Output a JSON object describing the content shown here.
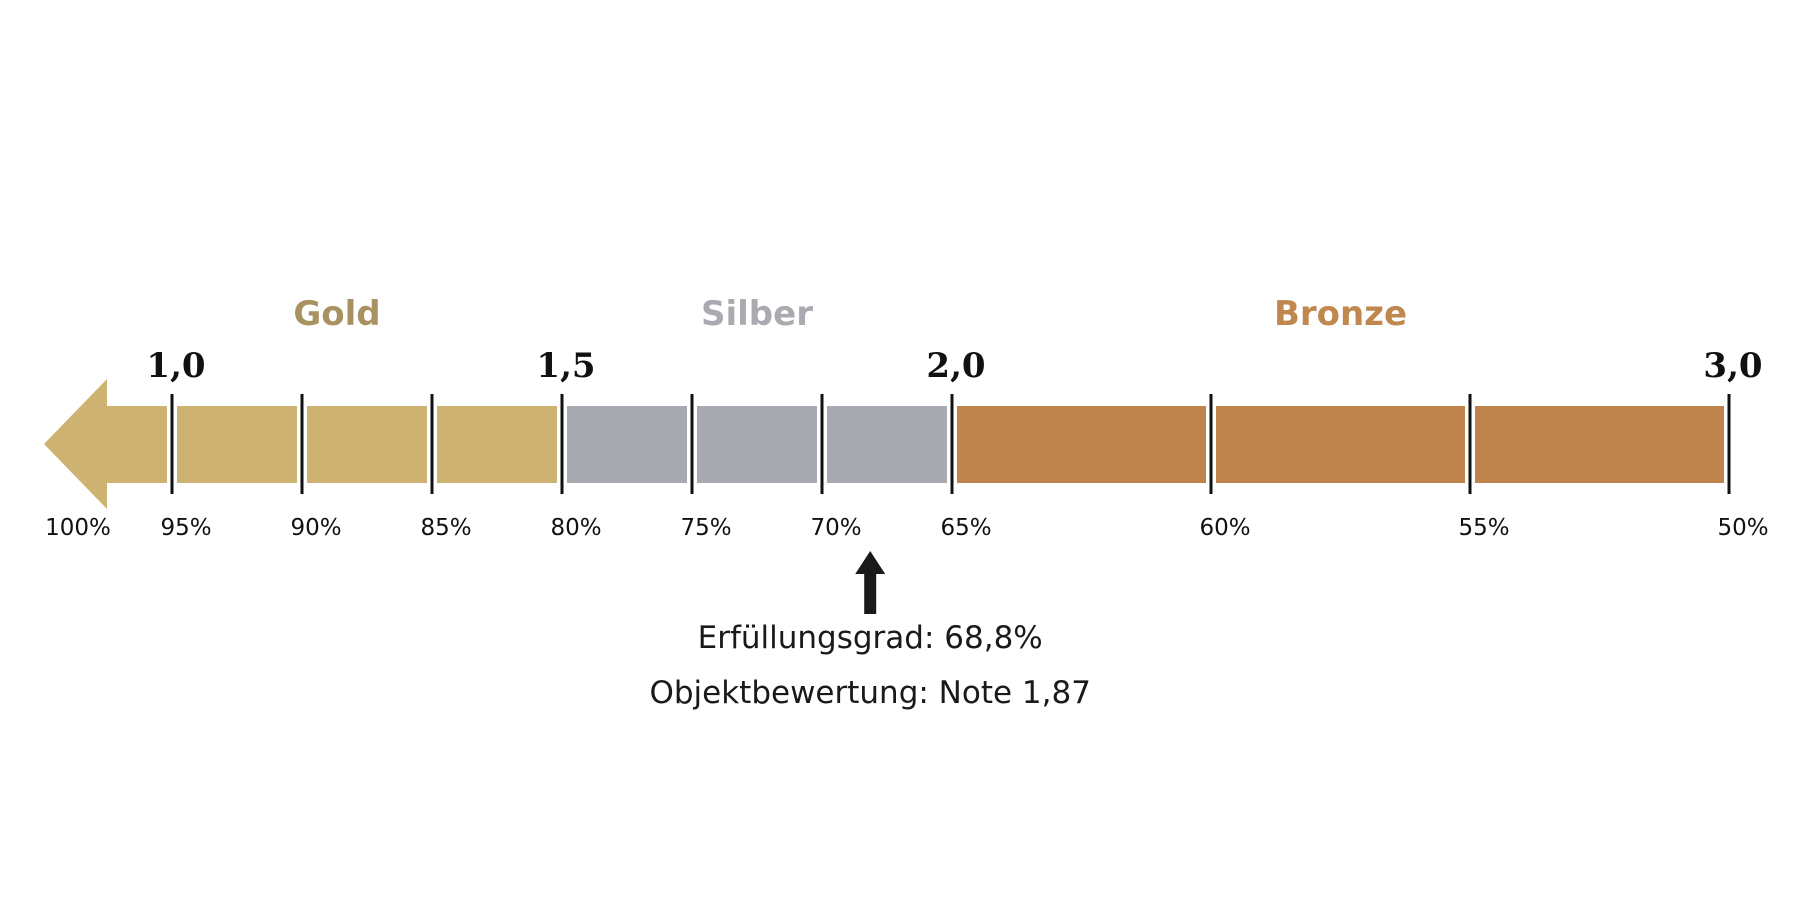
{
  "chart_data": {
    "type": "scale",
    "categories": [
      {
        "label": "Gold",
        "from_pct": 100,
        "to_pct": 80,
        "color": "#CDB272",
        "label_color": "#A89261"
      },
      {
        "label": "Silber",
        "from_pct": 80,
        "to_pct": 65,
        "color": "#A7AAB0",
        "label_color": "#A9ABB0"
      },
      {
        "label": "Bronze",
        "from_pct": 65,
        "to_pct": 50,
        "color": "#BE844B",
        "label_color": "#C0874F"
      }
    ],
    "percent_ticks": [
      95,
      90,
      85,
      80,
      75,
      70,
      65,
      60,
      55,
      50
    ],
    "percent_labels": [
      "100%",
      "95%",
      "90%",
      "85%",
      "80%",
      "75%",
      "70%",
      "65%",
      "60%",
      "55%",
      "50%"
    ],
    "grade_ticks": [
      {
        "pct": 95,
        "label": "1,0"
      },
      {
        "pct": 80,
        "label": "1,5"
      },
      {
        "pct": 65,
        "label": "2,0"
      },
      {
        "pct": 50,
        "label": "3,0"
      }
    ],
    "marker": {
      "pct": 68.8,
      "color": "#1a1a1a"
    },
    "annotation": {
      "line1": "Erfüllungsgrad: 68,8%",
      "line2": "Objektbewertung: Note 1,87"
    }
  }
}
